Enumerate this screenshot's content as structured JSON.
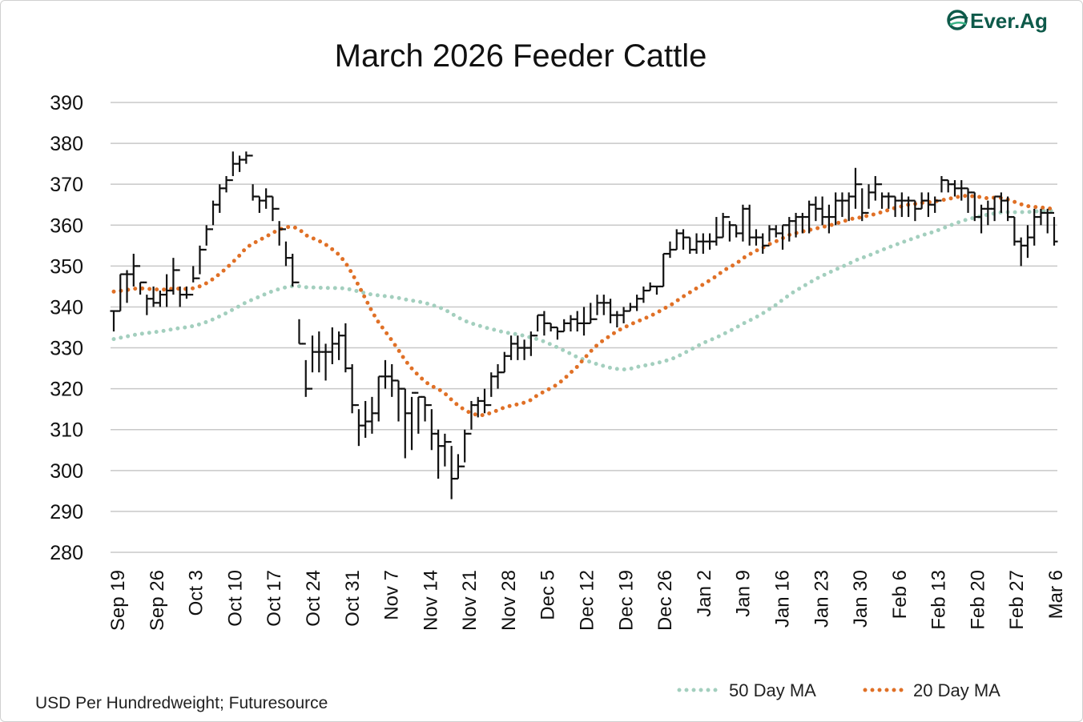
{
  "chart_data": {
    "type": "line",
    "title": "March 2026 Feeder Cattle",
    "source": "USD Per Hundredweight; Futuresource",
    "logo": "Ever.Ag",
    "ylim": [
      280,
      390
    ],
    "yticks": [
      280,
      290,
      300,
      310,
      320,
      330,
      340,
      350,
      360,
      370,
      380,
      390
    ],
    "x_labels": [
      "Sep 19",
      "Sep 26",
      "Oct 3",
      "Oct 10",
      "Oct 17",
      "Oct 24",
      "Oct 31",
      "Nov 7",
      "Nov 14",
      "Nov 21",
      "Nov 28",
      "Dec 5",
      "Dec 12",
      "Dec 19",
      "Dec 26",
      "Jan 2",
      "Jan 9",
      "Jan 16",
      "Jan 23",
      "Jan 30",
      "Feb 6",
      "Feb 13",
      "Feb 20",
      "Feb 27",
      "Mar 6"
    ],
    "legend": [
      {
        "name": "50 Day MA",
        "color": "#a3cfbe"
      },
      {
        "name": "20 Day MA",
        "color": "#e07026"
      }
    ],
    "colors": {
      "price": "#111111",
      "grid": "#c8c8c8"
    },
    "series_bar": [
      [
        339,
        334,
        339
      ],
      [
        348,
        339,
        348
      ],
      [
        349,
        341,
        348
      ],
      [
        353,
        345,
        350
      ],
      [
        346,
        343,
        346
      ],
      [
        343,
        338,
        342
      ],
      [
        345,
        340,
        341
      ],
      [
        344,
        340,
        343
      ],
      [
        348,
        340,
        344
      ],
      [
        352,
        343,
        349
      ],
      [
        345,
        340,
        343
      ],
      [
        345,
        342,
        343
      ],
      [
        350,
        346,
        347
      ],
      [
        355,
        348,
        354
      ],
      [
        360,
        355,
        359
      ],
      [
        366,
        360,
        365
      ],
      [
        370,
        363,
        369
      ],
      [
        372,
        368,
        371
      ],
      [
        378,
        372,
        375
      ],
      [
        377,
        373,
        376
      ],
      [
        378,
        375,
        377
      ],
      [
        370,
        366,
        367
      ],
      [
        367,
        363,
        366
      ],
      [
        369,
        364,
        367
      ],
      [
        367,
        361,
        364
      ],
      [
        361,
        355,
        359
      ],
      [
        356,
        350,
        352
      ],
      [
        353,
        345,
        346
      ],
      [
        337,
        331,
        331
      ],
      [
        327,
        318,
        320
      ],
      [
        333,
        324,
        329
      ],
      [
        334,
        324,
        329
      ],
      [
        331,
        322,
        329
      ],
      [
        335,
        326,
        331
      ],
      [
        334,
        327,
        333
      ],
      [
        336,
        324,
        325
      ],
      [
        326,
        314,
        316
      ],
      [
        315,
        306,
        311
      ],
      [
        317,
        308,
        312
      ],
      [
        318,
        309,
        314
      ],
      [
        323,
        312,
        323
      ],
      [
        327,
        320,
        323
      ],
      [
        326,
        318,
        322
      ],
      [
        322,
        312,
        320
      ],
      [
        320,
        303,
        314
      ],
      [
        318,
        305,
        319
      ],
      [
        318,
        309,
        318
      ],
      [
        318,
        312,
        316
      ],
      [
        315,
        305,
        309
      ],
      [
        310,
        298,
        306
      ],
      [
        309,
        301,
        307
      ],
      [
        306,
        293,
        298
      ],
      [
        304,
        298,
        301
      ],
      [
        310,
        302,
        309
      ],
      [
        317,
        310,
        316
      ],
      [
        318,
        313,
        317
      ],
      [
        320,
        314,
        316
      ],
      [
        324,
        318,
        323
      ],
      [
        326,
        320,
        324
      ],
      [
        329,
        324,
        328
      ],
      [
        333,
        327,
        331
      ],
      [
        333,
        327,
        330
      ],
      [
        332,
        327,
        330
      ],
      [
        334,
        328,
        333
      ],
      [
        338,
        334,
        338
      ],
      [
        339,
        333,
        336
      ],
      [
        336,
        334,
        335
      ],
      [
        335,
        332,
        334
      ],
      [
        337,
        334,
        336
      ],
      [
        338,
        334,
        337
      ],
      [
        339,
        334,
        336
      ],
      [
        340,
        333,
        336
      ],
      [
        341,
        336,
        337
      ],
      [
        343,
        338,
        341
      ],
      [
        343,
        338,
        341
      ],
      [
        342,
        336,
        338
      ],
      [
        339,
        335,
        338
      ],
      [
        340,
        336,
        339
      ],
      [
        341,
        339,
        340
      ],
      [
        343,
        339,
        342
      ],
      [
        345,
        341,
        344
      ],
      [
        346,
        344,
        345
      ],
      [
        345,
        343,
        345
      ],
      [
        353,
        345,
        353
      ],
      [
        356,
        352,
        354
      ],
      [
        359,
        354,
        358
      ],
      [
        359,
        354,
        357
      ],
      [
        357,
        353,
        354
      ],
      [
        358,
        353,
        356
      ],
      [
        358,
        353,
        356
      ],
      [
        358,
        354,
        356
      ],
      [
        362,
        355,
        357
      ],
      [
        363,
        357,
        362
      ],
      [
        361,
        356,
        360
      ],
      [
        360,
        357,
        358
      ],
      [
        365,
        356,
        364
      ],
      [
        365,
        355,
        357
      ],
      [
        359,
        355,
        357
      ],
      [
        358,
        353,
        355
      ],
      [
        360,
        356,
        359
      ],
      [
        360,
        357,
        358
      ],
      [
        360,
        354,
        360
      ],
      [
        362,
        356,
        361
      ],
      [
        363,
        357,
        362
      ],
      [
        363,
        358,
        362
      ],
      [
        366,
        358,
        365
      ],
      [
        367,
        361,
        364
      ],
      [
        367,
        360,
        362
      ],
      [
        365,
        358,
        362
      ],
      [
        368,
        360,
        366
      ],
      [
        368,
        362,
        366
      ],
      [
        368,
        361,
        367
      ],
      [
        374,
        364,
        370
      ],
      [
        369,
        361,
        363
      ],
      [
        370,
        364,
        368
      ],
      [
        372,
        366,
        370
      ],
      [
        368,
        364,
        367
      ],
      [
        368,
        364,
        367
      ],
      [
        367,
        362,
        366
      ],
      [
        368,
        362,
        366
      ],
      [
        367,
        362,
        366
      ],
      [
        366,
        361,
        364
      ],
      [
        368,
        364,
        366
      ],
      [
        368,
        362,
        365
      ],
      [
        367,
        363,
        366
      ],
      [
        372,
        368,
        371
      ],
      [
        371,
        368,
        370
      ],
      [
        371,
        367,
        369
      ],
      [
        371,
        366,
        369
      ],
      [
        369,
        363,
        368
      ],
      [
        368,
        361,
        362
      ],
      [
        365,
        358,
        364
      ],
      [
        366,
        360,
        364
      ],
      [
        367,
        361,
        367
      ],
      [
        368,
        363,
        366
      ],
      [
        367,
        361,
        362
      ],
      [
        362,
        355,
        356
      ],
      [
        357,
        350,
        355
      ],
      [
        360,
        352,
        357
      ],
      [
        364,
        355,
        362
      ],
      [
        364,
        360,
        363
      ],
      [
        364,
        358,
        363
      ],
      [
        362,
        355,
        356
      ]
    ]
  }
}
